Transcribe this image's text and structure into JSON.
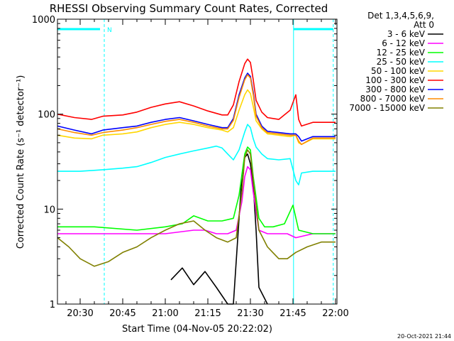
{
  "chart_data": {
    "type": "line",
    "title": "RHESSI Observing Summary Count Rates, Corrected",
    "xlabel": "Start Time (04-Nov-05 20:22:02)",
    "ylabel": "Corrected Count Rate (s⁻¹ detector⁻¹)",
    "x_unit": "minutes since 20:00",
    "xlim": [
      22.0,
      120.5
    ],
    "ylim": [
      1,
      1000
    ],
    "yscale": "log",
    "grid": false,
    "x_ticks": [
      {
        "value": 30,
        "label": "20:30"
      },
      {
        "value": 45,
        "label": "20:45"
      },
      {
        "value": 60,
        "label": "21:00"
      },
      {
        "value": 75,
        "label": "21:15"
      },
      {
        "value": 90,
        "label": "21:30"
      },
      {
        "value": 105,
        "label": "21:45"
      },
      {
        "value": 120,
        "label": "22:00"
      }
    ],
    "y_ticks": [
      {
        "value": 1,
        "label": "1"
      },
      {
        "value": 10,
        "label": "10"
      },
      {
        "value": 100,
        "label": "100"
      },
      {
        "value": 1000,
        "label": "1000"
      }
    ],
    "legend_header": [
      "Det 1,3,4,5,6,9,",
      "Att 0"
    ],
    "legend_position": "right",
    "annotations": {
      "night_marker": "N",
      "footer": "20-Oct-2021 21:44"
    },
    "series": [
      {
        "name": "3 - 6 keV",
        "color": "#000000",
        "x": [
          62,
          66,
          70,
          74,
          78,
          82,
          84,
          86,
          87,
          88,
          89,
          90,
          91,
          92,
          93,
          96
        ],
        "y": [
          1.8,
          2.4,
          1.6,
          2.2,
          1.5,
          1.0,
          1.0,
          8.0,
          22,
          35,
          38,
          30,
          18,
          6,
          1.5,
          1.0
        ]
      },
      {
        "name": "6 - 12 keV",
        "color": "#ff00ff",
        "x": [
          22,
          40,
          60,
          70,
          74,
          78,
          82,
          85,
          87,
          88,
          89,
          90,
          91,
          93,
          96,
          100,
          103,
          106,
          112,
          120
        ],
        "y": [
          5.5,
          5.5,
          5.5,
          6.0,
          6.0,
          5.5,
          5.5,
          6.0,
          12,
          22,
          28,
          26,
          15,
          6.0,
          5.5,
          5.5,
          5.5,
          5.0,
          5.5,
          5.5
        ]
      },
      {
        "name": "12 - 25 keV",
        "color": "#00ff00",
        "x": [
          22,
          35,
          50,
          60,
          66,
          70,
          75,
          80,
          84,
          86,
          88,
          89,
          90,
          91,
          93,
          95,
          98,
          102,
          105,
          107,
          112,
          120
        ],
        "y": [
          6.5,
          6.5,
          6.0,
          6.5,
          7.0,
          8.5,
          7.5,
          7.5,
          8.0,
          14,
          38,
          45,
          42,
          22,
          8.0,
          6.5,
          6.5,
          7.0,
          11,
          6.0,
          5.5,
          5.5
        ]
      },
      {
        "name": "25 - 50 keV",
        "color": "#00ffff",
        "x": [
          22,
          30,
          38,
          45,
          50,
          55,
          60,
          65,
          70,
          75,
          78,
          80,
          82,
          84,
          86,
          88,
          89,
          90,
          91,
          92,
          94,
          96,
          100,
          104,
          106,
          107,
          108,
          112,
          120
        ],
        "y": [
          25,
          25,
          26,
          27,
          28,
          31,
          35,
          38,
          41,
          44,
          46,
          44,
          38,
          33,
          42,
          65,
          78,
          72,
          55,
          45,
          38,
          34,
          33,
          34,
          20,
          18,
          24,
          25,
          25
        ]
      },
      {
        "name": "50 - 100 keV",
        "color": "#ffd700",
        "x": [
          22,
          28,
          34,
          38,
          45,
          50,
          55,
          60,
          65,
          70,
          75,
          80,
          82,
          84,
          86,
          88,
          89,
          90,
          91,
          92,
          94,
          96,
          100,
          104,
          106,
          107,
          108,
          112,
          120
        ],
        "y": [
          60,
          56,
          55,
          60,
          62,
          65,
          72,
          78,
          82,
          78,
          72,
          68,
          65,
          72,
          110,
          160,
          180,
          165,
          120,
          85,
          70,
          62,
          60,
          58,
          60,
          50,
          48,
          55,
          55
        ]
      },
      {
        "name": "100 - 300 keV",
        "color": "#ff0000",
        "x": [
          22,
          28,
          34,
          38,
          45,
          50,
          55,
          60,
          65,
          70,
          75,
          80,
          82,
          84,
          86,
          88,
          89,
          90,
          91,
          92,
          94,
          96,
          100,
          104,
          106,
          107,
          108,
          112,
          120
        ],
        "y": [
          100,
          92,
          88,
          95,
          98,
          105,
          118,
          128,
          135,
          122,
          108,
          98,
          98,
          125,
          220,
          340,
          380,
          350,
          230,
          140,
          105,
          92,
          88,
          110,
          160,
          88,
          75,
          82,
          82
        ]
      },
      {
        "name": "300 - 800 keV",
        "color": "#0000ff",
        "x": [
          22,
          28,
          34,
          38,
          45,
          50,
          55,
          60,
          65,
          70,
          75,
          80,
          82,
          84,
          86,
          88,
          89,
          90,
          91,
          92,
          94,
          96,
          100,
          104,
          106,
          107,
          108,
          112,
          120
        ],
        "y": [
          75,
          68,
          62,
          68,
          72,
          75,
          82,
          88,
          92,
          85,
          78,
          72,
          72,
          90,
          160,
          240,
          270,
          250,
          170,
          100,
          75,
          66,
          64,
          62,
          62,
          58,
          52,
          58,
          58
        ]
      },
      {
        "name": "800 - 7000 keV",
        "color": "#ff8c00",
        "x": [
          22,
          28,
          34,
          38,
          45,
          50,
          55,
          60,
          65,
          70,
          75,
          80,
          82,
          84,
          86,
          88,
          89,
          90,
          91,
          92,
          94,
          96,
          100,
          104,
          106,
          107,
          108,
          112,
          120
        ],
        "y": [
          70,
          64,
          60,
          64,
          68,
          72,
          78,
          84,
          88,
          82,
          75,
          70,
          70,
          86,
          150,
          230,
          260,
          240,
          160,
          95,
          72,
          64,
          62,
          60,
          60,
          52,
          48,
          56,
          56
        ]
      },
      {
        "name": "7000 - 15000 keV",
        "color": "#808000",
        "x": [
          22,
          26,
          30,
          35,
          40,
          45,
          50,
          55,
          60,
          65,
          70,
          74,
          78,
          82,
          85,
          87,
          88,
          89,
          90,
          91,
          93,
          96,
          100,
          103,
          106,
          110,
          115,
          120
        ],
        "y": [
          5.0,
          4.0,
          3.0,
          2.5,
          2.8,
          3.5,
          4.0,
          5.0,
          6.0,
          7.0,
          7.5,
          6.0,
          5.0,
          4.5,
          5.0,
          15,
          35,
          42,
          38,
          20,
          6.0,
          4.0,
          3.0,
          3.0,
          3.5,
          4.0,
          4.5,
          4.5
        ]
      }
    ]
  }
}
